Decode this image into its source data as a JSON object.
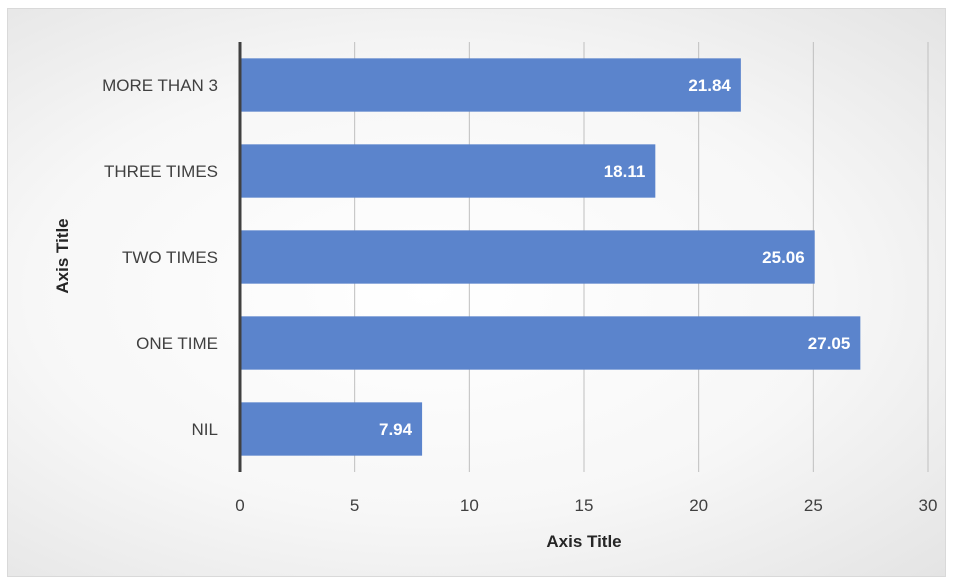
{
  "chart_data": {
    "type": "bar",
    "orientation": "horizontal",
    "categories": [
      "MORE THAN 3",
      "THREE TIMES",
      "TWO TIMES",
      "ONE TIME",
      "NIL"
    ],
    "values": [
      21.84,
      18.11,
      25.06,
      27.05,
      7.94
    ],
    "data_labels": [
      "21.84",
      "18.11",
      "25.06",
      "27.05",
      "7.94"
    ],
    "xticks": [
      "0",
      "5",
      "10",
      "15",
      "20",
      "25",
      "30"
    ],
    "xlim": [
      0,
      30
    ],
    "xlabel": "Axis Title",
    "ylabel": "Axis Title",
    "grid": "vertical",
    "legend": "none",
    "colors": {
      "bar": "#5b84cc",
      "gridline": "#bfbfbf",
      "axis": "#404040"
    }
  }
}
